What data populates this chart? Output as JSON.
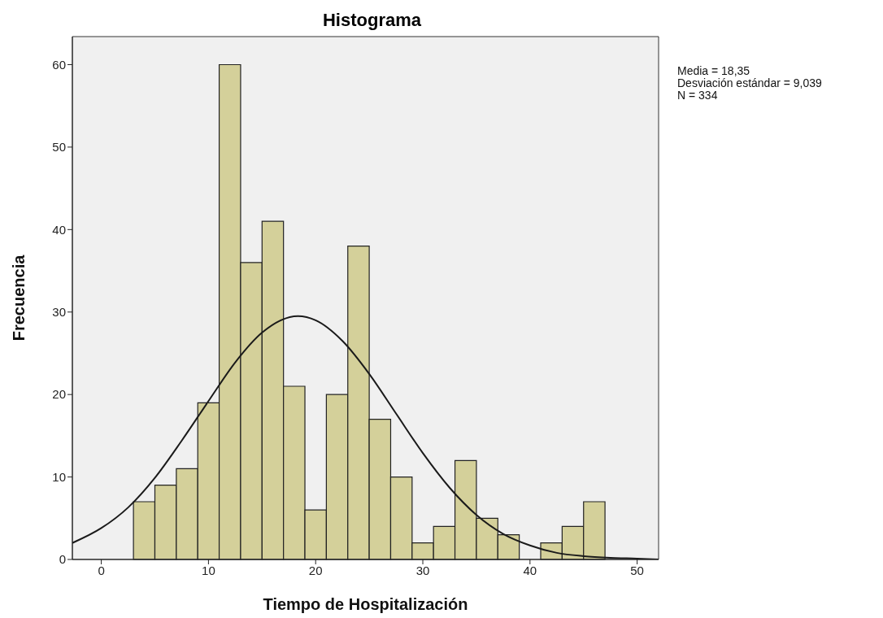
{
  "chart_data": {
    "type": "histogram",
    "title": "Histograma",
    "xlabel": "Tiempo de Hospitalización",
    "ylabel": "Frecuencia",
    "bins": [
      3,
      5,
      7,
      9,
      11,
      13,
      15,
      17,
      19,
      21,
      23,
      25,
      27,
      29,
      31,
      33,
      35,
      37,
      39,
      41,
      43,
      45,
      47
    ],
    "values": [
      7,
      9,
      11,
      19,
      60,
      36,
      41,
      21,
      6,
      20,
      38,
      17,
      10,
      2,
      4,
      12,
      5,
      3,
      0,
      2,
      4,
      7
    ],
    "color": "#d4d09a",
    "series": [
      {
        "type": "line",
        "color": "#1a1a1a",
        "x": [
          -2.7,
          0,
          2.5,
          5,
          7.5,
          10,
          12.5,
          15,
          18.35,
          20,
          22.5,
          25,
          27.5,
          30,
          32.5,
          35,
          37.5,
          40,
          42.5,
          45,
          47.5,
          50,
          52
        ],
        "values": [
          2.0,
          3.8,
          6.3,
          9.9,
          14.4,
          19.2,
          23.9,
          27.5,
          29.5,
          29.0,
          26.5,
          22.5,
          17.7,
          12.9,
          8.7,
          5.4,
          3.1,
          1.7,
          0.8,
          0.4,
          0.2,
          0.1,
          0.0
        ]
      }
    ],
    "xlim": [
      -2.7,
      52
    ],
    "xticks": [
      0,
      10,
      20,
      30,
      40,
      50
    ],
    "ylim": [
      0,
      63.4
    ],
    "yticks": [
      0,
      10,
      20,
      30,
      40,
      50,
      60
    ],
    "grid": false,
    "marker": "none",
    "line_style": "solid",
    "annotations": [
      "Media = 18,35",
      "Desviación estándar = 9,039",
      "N = 334"
    ]
  }
}
